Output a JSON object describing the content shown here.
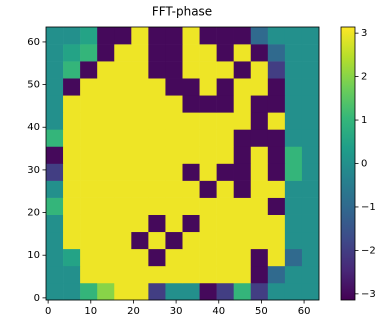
{
  "chart_data": {
    "type": "heatmap",
    "title": "FFT-phase",
    "colormap": "viridis",
    "x": [
      1.5,
      5.5,
      9.5,
      13.5,
      17.5,
      21.5,
      25.5,
      29.5,
      33.5,
      37.5,
      41.5,
      45.5,
      49.5,
      53.5,
      57.5,
      61.5
    ],
    "y": [
      1.5,
      5.5,
      9.5,
      13.5,
      17.5,
      21.5,
      25.5,
      29.5,
      33.5,
      37.5,
      41.5,
      45.5,
      49.5,
      53.5,
      57.5,
      61.5
    ],
    "z": [
      [
        0,
        0,
        1,
        2,
        3,
        3,
        -2,
        0,
        0,
        -3,
        -2,
        1,
        -2,
        0,
        0,
        0
      ],
      [
        0,
        0,
        3,
        3,
        3,
        3,
        3,
        3,
        3,
        3,
        3,
        3,
        -3,
        -1,
        0,
        0
      ],
      [
        0,
        0.5,
        3,
        3,
        3,
        3,
        -3,
        3,
        3,
        3,
        3,
        3,
        -3,
        3,
        -1,
        0
      ],
      [
        0,
        3,
        3,
        3,
        3,
        -3,
        3,
        -3,
        3,
        3,
        3,
        3,
        3,
        3,
        0,
        0
      ],
      [
        0,
        3,
        3,
        3,
        3,
        3,
        -3,
        3,
        -3,
        3,
        3,
        3,
        3,
        3,
        0,
        0
      ],
      [
        1,
        3,
        3,
        3,
        3,
        3,
        3,
        3,
        3,
        3,
        3,
        3,
        3,
        -3,
        0,
        0
      ],
      [
        0,
        3,
        3,
        3,
        3,
        3,
        3,
        3,
        3,
        -3,
        3,
        -3,
        3,
        3,
        0,
        0
      ],
      [
        -2,
        3,
        3,
        3,
        3,
        3,
        3,
        3,
        -3,
        3,
        -3,
        -3,
        3,
        -3,
        1,
        0
      ],
      [
        -3,
        3,
        3,
        3,
        3,
        3,
        3,
        3,
        3,
        3,
        3,
        -3,
        3,
        -3,
        1,
        0
      ],
      [
        1,
        3,
        3,
        3,
        3,
        3,
        3,
        3,
        3,
        3,
        3,
        -3,
        -3,
        -3,
        0,
        0
      ],
      [
        0,
        3,
        3,
        3,
        3,
        3,
        3,
        3,
        3,
        3,
        3,
        3,
        -3,
        3,
        0,
        0
      ],
      [
        0,
        3,
        3,
        3,
        3,
        3,
        3,
        3,
        -3,
        -3,
        -3,
        3,
        -3,
        -3,
        0,
        0
      ],
      [
        0,
        -3,
        3,
        3,
        3,
        3,
        3,
        -3,
        -3,
        3,
        -3,
        3,
        3,
        -3,
        0,
        0
      ],
      [
        0,
        1,
        -3,
        3,
        3,
        3,
        -3,
        -3,
        3,
        3,
        3,
        -3,
        3,
        -2,
        0,
        0
      ],
      [
        0,
        0.5,
        1,
        -3,
        3,
        3,
        -3,
        -3,
        3,
        3,
        -3,
        3,
        -3,
        -1,
        0,
        0
      ],
      [
        0,
        0,
        0.5,
        -3,
        -3,
        3,
        -3,
        -3,
        3,
        -3,
        -3,
        -3,
        -1,
        0,
        0,
        0
      ]
    ],
    "xlim": [
      -0.5,
      63.5
    ],
    "ylim": [
      -0.5,
      63.5
    ],
    "xticks": [
      0,
      10,
      20,
      30,
      40,
      50,
      60
    ],
    "yticks": [
      0,
      10,
      20,
      30,
      40,
      50,
      60
    ],
    "zlim": [
      -3.14159,
      3.14159
    ],
    "zticks": [
      {
        "value": -3,
        "label": "−3"
      },
      {
        "value": -2,
        "label": "−2"
      },
      {
        "value": -1,
        "label": "−1"
      },
      0,
      1,
      2,
      3
    ]
  }
}
